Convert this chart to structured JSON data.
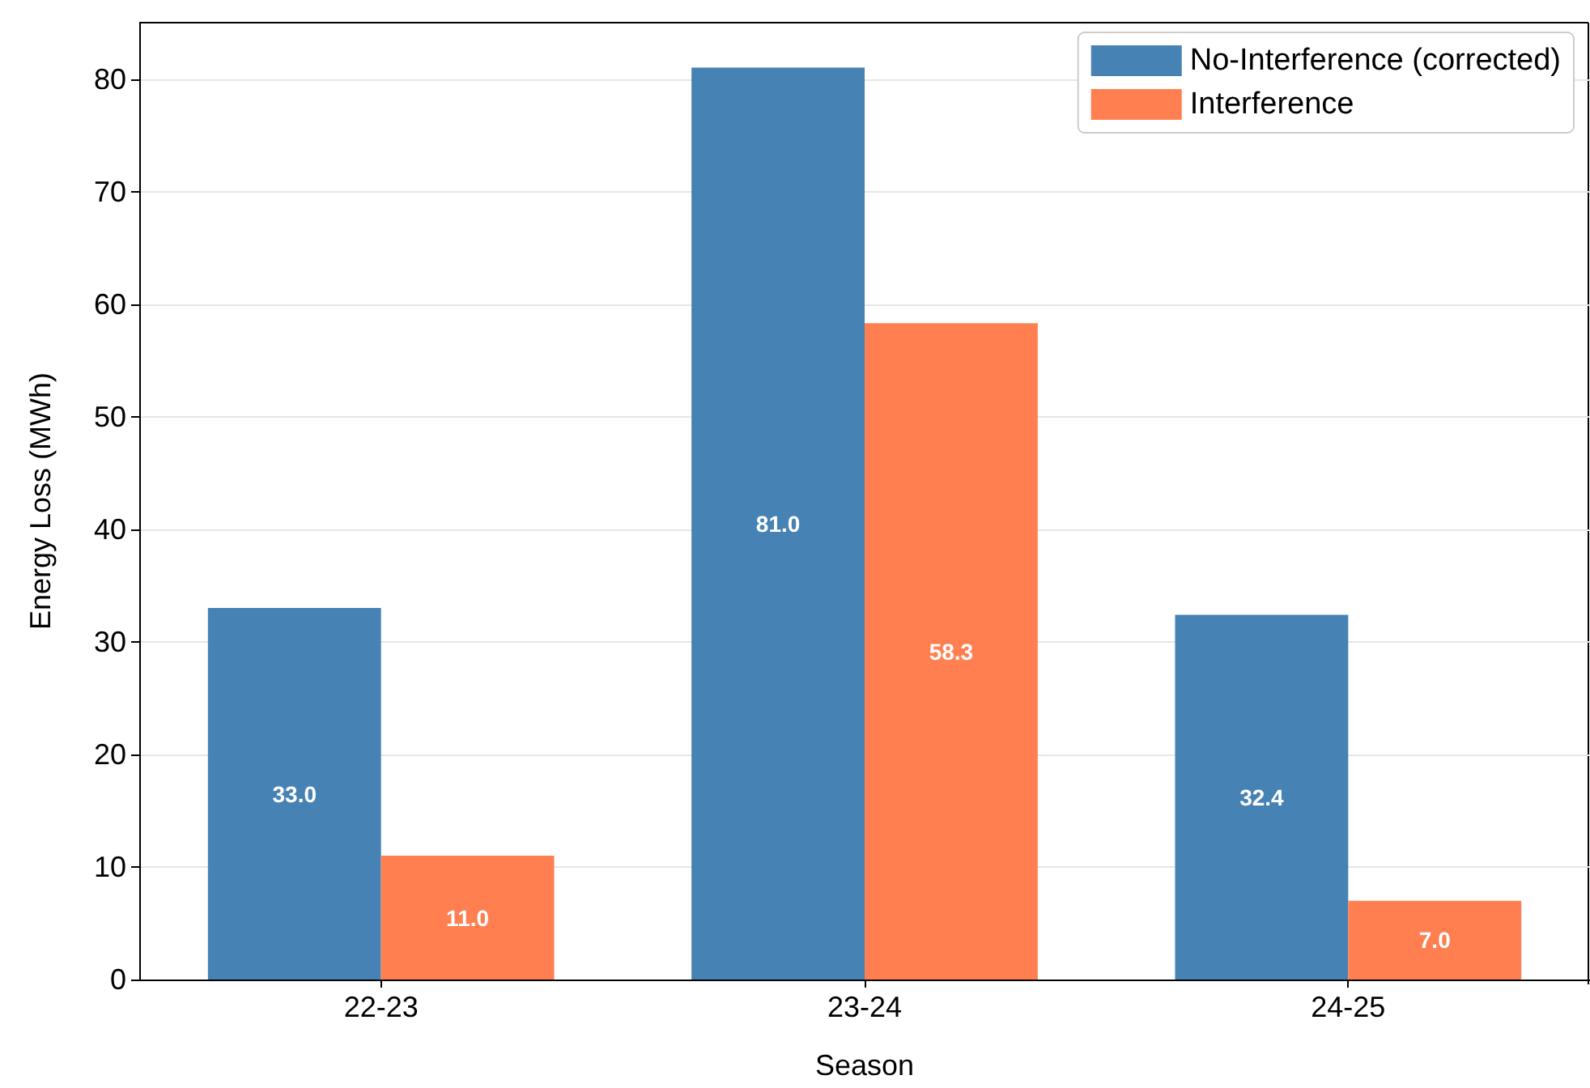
{
  "chart_data": {
    "type": "bar",
    "xlabel": "Season",
    "ylabel": "Energy Loss (MWh)",
    "categories": [
      "22-23",
      "23-24",
      "24-25"
    ],
    "series": [
      {
        "name": "No-Interference (corrected)",
        "color": "#4682b4",
        "values": [
          33.0,
          81.0,
          32.4
        ],
        "value_labels": [
          "33.0",
          "81.0",
          "32.4"
        ]
      },
      {
        "name": "Interference",
        "color": "#ff7f50",
        "values": [
          11.0,
          58.3,
          7.0
        ],
        "value_labels": [
          "11.0",
          "58.3",
          "7.0"
        ]
      }
    ],
    "ylim": [
      0,
      85
    ],
    "yticks": [
      0,
      10,
      20,
      30,
      40,
      50,
      60,
      70,
      80
    ],
    "grid": "y",
    "legend": "top right"
  }
}
